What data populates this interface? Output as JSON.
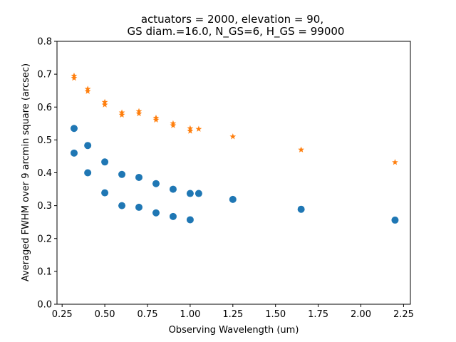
{
  "chart_data": {
    "type": "scatter",
    "title_lines": [
      "actuators = 2000, elevation = 90,",
      "GS diam.=16.0, N_GS=6, H_GS = 99000"
    ],
    "xlabel": "Observing Wavelength (um)",
    "ylabel": "Averaged FWHM over 9 arcmin square (arcsec)",
    "xlim": [
      0.22,
      2.29
    ],
    "ylim": [
      0.0,
      0.8
    ],
    "xticks": [
      "0.25",
      "0.50",
      "0.75",
      "1.00",
      "1.25",
      "1.50",
      "1.75",
      "2.00",
      "2.25"
    ],
    "yticks": [
      "0.0",
      "0.1",
      "0.2",
      "0.3",
      "0.4",
      "0.5",
      "0.6",
      "0.7",
      "0.8"
    ],
    "grid": false,
    "series": [
      {
        "marker": "circle",
        "color": "#1f77b4",
        "points": [
          [
            0.32,
            0.535
          ],
          [
            0.32,
            0.46
          ],
          [
            0.4,
            0.483
          ],
          [
            0.4,
            0.4
          ],
          [
            0.5,
            0.433
          ],
          [
            0.5,
            0.339
          ],
          [
            0.6,
            0.395
          ],
          [
            0.6,
            0.3
          ],
          [
            0.7,
            0.386
          ],
          [
            0.7,
            0.295
          ],
          [
            0.8,
            0.367
          ],
          [
            0.8,
            0.278
          ],
          [
            0.9,
            0.35
          ],
          [
            0.9,
            0.267
          ],
          [
            1.0,
            0.337
          ],
          [
            1.0,
            0.257
          ],
          [
            1.05,
            0.337
          ],
          [
            1.25,
            0.319
          ],
          [
            1.65,
            0.289
          ],
          [
            2.2,
            0.256
          ]
        ]
      },
      {
        "marker": "star",
        "color": "#ff7f0e",
        "points": [
          [
            0.32,
            0.695
          ],
          [
            0.32,
            0.688
          ],
          [
            0.4,
            0.655
          ],
          [
            0.4,
            0.648
          ],
          [
            0.5,
            0.615
          ],
          [
            0.5,
            0.607
          ],
          [
            0.6,
            0.583
          ],
          [
            0.6,
            0.576
          ],
          [
            0.7,
            0.587
          ],
          [
            0.7,
            0.58
          ],
          [
            0.8,
            0.567
          ],
          [
            0.8,
            0.561
          ],
          [
            0.9,
            0.55
          ],
          [
            0.9,
            0.544
          ],
          [
            1.0,
            0.535
          ],
          [
            1.0,
            0.527
          ],
          [
            1.05,
            0.533
          ],
          [
            1.25,
            0.51
          ],
          [
            1.65,
            0.47
          ],
          [
            2.2,
            0.432
          ]
        ]
      }
    ]
  }
}
